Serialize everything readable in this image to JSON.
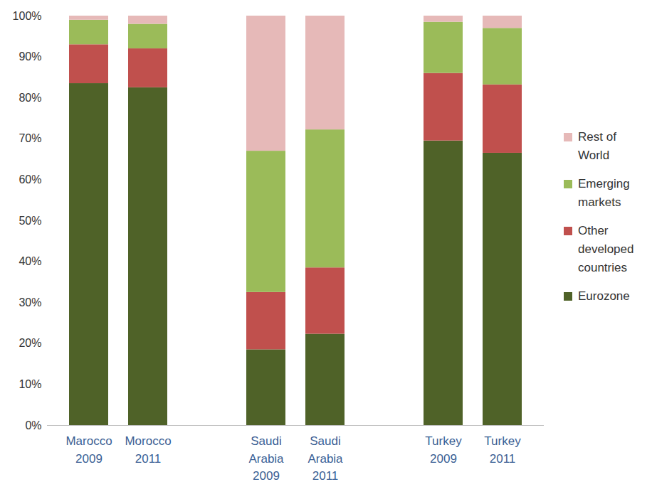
{
  "chart_data": {
    "type": "bar",
    "stacked": true,
    "legend": "right",
    "grid": false,
    "categories": [
      "Marocco 2009",
      "Morocco 2011",
      null,
      "Saudi Arabia 2009",
      "Saudi Arabia 2011",
      null,
      "Turkey 2009",
      "Turkey 2011"
    ],
    "series": [
      {
        "name": "Eurozone",
        "color": "#4f6228",
        "values": [
          83.5,
          82.5,
          null,
          18.5,
          22.3,
          null,
          69.5,
          66.5
        ]
      },
      {
        "name": "Other developed countries",
        "color": "#c0504d",
        "values": [
          9.5,
          9.5,
          null,
          14,
          16.2,
          null,
          16.5,
          16.7
        ]
      },
      {
        "name": "Emerging markets",
        "color": "#9bbb59",
        "values": [
          6,
          6,
          null,
          34.5,
          33.7,
          null,
          12.5,
          13.8
        ]
      },
      {
        "name": "Rest of World",
        "color": "#e6b9b8",
        "values": [
          1,
          2,
          null,
          33,
          27.8,
          null,
          1.5,
          3
        ]
      }
    ],
    "ylim": [
      0,
      100
    ],
    "yticks": [
      {
        "value": 0,
        "label": "0%"
      },
      {
        "value": 10,
        "label": "10%"
      },
      {
        "value": 20,
        "label": "20%"
      },
      {
        "value": 30,
        "label": "30%"
      },
      {
        "value": 40,
        "label": "40%"
      },
      {
        "value": 50,
        "label": "50%"
      },
      {
        "value": 60,
        "label": "60%"
      },
      {
        "value": 70,
        "label": "70%"
      },
      {
        "value": 80,
        "label": "80%"
      },
      {
        "value": 90,
        "label": "90%"
      },
      {
        "value": 100,
        "label": "100%"
      }
    ]
  }
}
